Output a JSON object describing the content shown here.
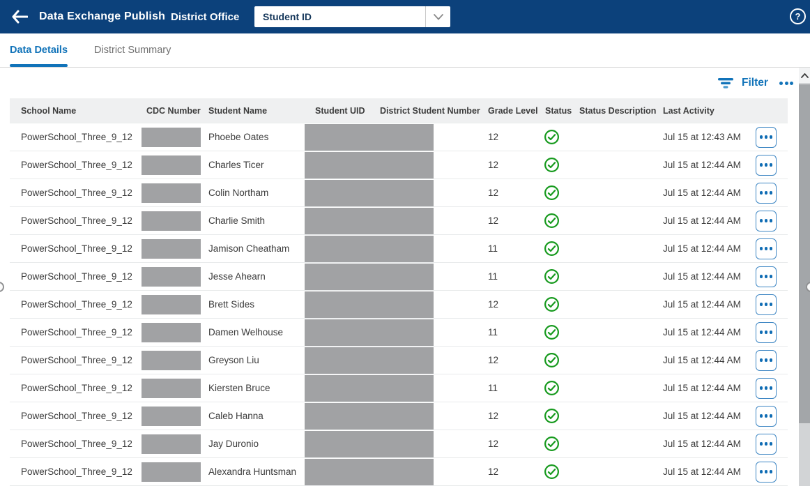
{
  "topbar": {
    "title": "Data Exchange Publish",
    "context": "District Office",
    "dropdown": {
      "value": "Student ID"
    },
    "help_label": "?"
  },
  "tabs": [
    {
      "label": "Data Details",
      "active": true
    },
    {
      "label": "District Summary",
      "active": false
    }
  ],
  "toolbar": {
    "filter_label": "Filter"
  },
  "table": {
    "columns": [
      "School Name",
      "CDC Number",
      "Student Name",
      "Student UID",
      "District Student Number",
      "Grade Level",
      "Status",
      "Status Description",
      "Last Activity"
    ],
    "rows": [
      {
        "school_name": "PowerSchool_Three_9_12",
        "cdc_redacted": true,
        "student_name": "Phoebe Oates",
        "uid_redacted": true,
        "grade_level": "12",
        "status": "success",
        "status_description": "",
        "last_activity": "Jul 15 at 12:43 AM"
      },
      {
        "school_name": "PowerSchool_Three_9_12",
        "cdc_redacted": true,
        "student_name": "Charles Ticer",
        "uid_redacted": true,
        "grade_level": "12",
        "status": "success",
        "status_description": "",
        "last_activity": "Jul 15 at 12:44 AM"
      },
      {
        "school_name": "PowerSchool_Three_9_12",
        "cdc_redacted": true,
        "student_name": "Colin Northam",
        "uid_redacted": true,
        "grade_level": "12",
        "status": "success",
        "status_description": "",
        "last_activity": "Jul 15 at 12:44 AM"
      },
      {
        "school_name": "PowerSchool_Three_9_12",
        "cdc_redacted": true,
        "student_name": "Charlie Smith",
        "uid_redacted": true,
        "grade_level": "12",
        "status": "success",
        "status_description": "",
        "last_activity": "Jul 15 at 12:44 AM"
      },
      {
        "school_name": "PowerSchool_Three_9_12",
        "cdc_redacted": true,
        "student_name": "Jamison Cheatham",
        "uid_redacted": true,
        "grade_level": "11",
        "status": "success",
        "status_description": "",
        "last_activity": "Jul 15 at 12:44 AM"
      },
      {
        "school_name": "PowerSchool_Three_9_12",
        "cdc_redacted": true,
        "student_name": "Jesse Ahearn",
        "uid_redacted": true,
        "grade_level": "11",
        "status": "success",
        "status_description": "",
        "last_activity": "Jul 15 at 12:44 AM"
      },
      {
        "school_name": "PowerSchool_Three_9_12",
        "cdc_redacted": true,
        "student_name": "Brett Sides",
        "uid_redacted": true,
        "grade_level": "12",
        "status": "success",
        "status_description": "",
        "last_activity": "Jul 15 at 12:44 AM"
      },
      {
        "school_name": "PowerSchool_Three_9_12",
        "cdc_redacted": true,
        "student_name": "Damen Welhouse",
        "uid_redacted": true,
        "grade_level": "11",
        "status": "success",
        "status_description": "",
        "last_activity": "Jul 15 at 12:44 AM"
      },
      {
        "school_name": "PowerSchool_Three_9_12",
        "cdc_redacted": true,
        "student_name": "Greyson Liu",
        "uid_redacted": true,
        "grade_level": "12",
        "status": "success",
        "status_description": "",
        "last_activity": "Jul 15 at 12:44 AM"
      },
      {
        "school_name": "PowerSchool_Three_9_12",
        "cdc_redacted": true,
        "student_name": "Kiersten Bruce",
        "uid_redacted": true,
        "grade_level": "11",
        "status": "success",
        "status_description": "",
        "last_activity": "Jul 15 at 12:44 AM"
      },
      {
        "school_name": "PowerSchool_Three_9_12",
        "cdc_redacted": true,
        "student_name": "Caleb Hanna",
        "uid_redacted": true,
        "grade_level": "12",
        "status": "success",
        "status_description": "",
        "last_activity": "Jul 15 at 12:44 AM"
      },
      {
        "school_name": "PowerSchool_Three_9_12",
        "cdc_redacted": true,
        "student_name": "Jay Duronio",
        "uid_redacted": true,
        "grade_level": "12",
        "status": "success",
        "status_description": "",
        "last_activity": "Jul 15 at 12:44 AM"
      },
      {
        "school_name": "PowerSchool_Three_9_12",
        "cdc_redacted": true,
        "student_name": "Alexandra Huntsman",
        "uid_redacted": true,
        "grade_level": "12",
        "status": "success",
        "status_description": "",
        "last_activity": "Jul 15 at 12:44 AM"
      }
    ]
  },
  "colors": {
    "topbar_bg": "#0c417b",
    "accent_blue": "#1173b9",
    "status_green": "#179a1e",
    "redaction_gray": "#a1a2a4",
    "header_row_bg": "#eff0f1"
  }
}
